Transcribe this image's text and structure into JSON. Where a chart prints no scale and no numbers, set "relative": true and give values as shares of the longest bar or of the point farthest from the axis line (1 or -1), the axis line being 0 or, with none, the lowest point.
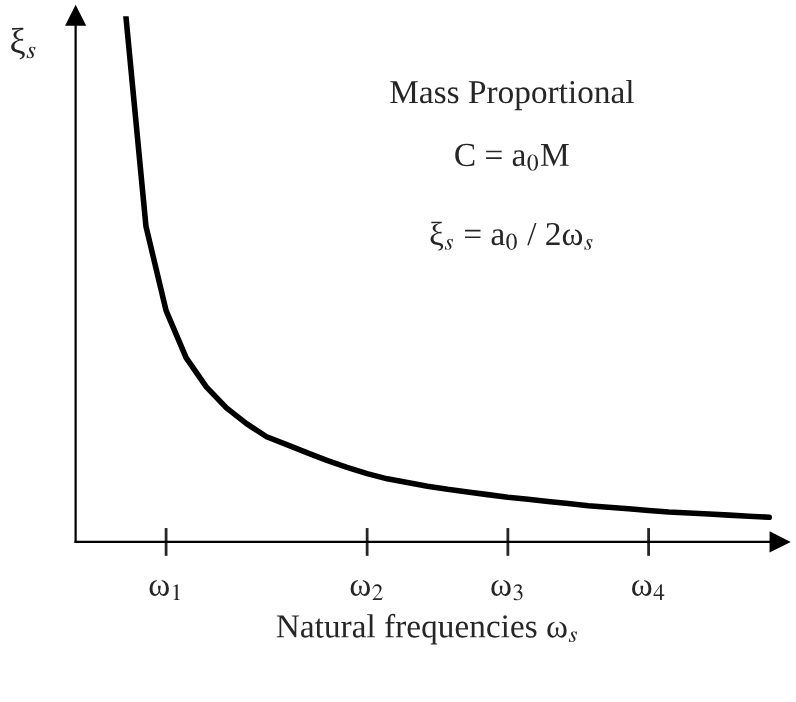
{
  "chart_data": {
    "type": "line",
    "relative": true,
    "xlabel": "Natural frequencies ω$_{s}$",
    "ylabel": "ξ$_{s}$",
    "categories": [
      null,
      null,
      null,
      null,
      "ω$_{1}$",
      null,
      null,
      null,
      null,
      null,
      null,
      null,
      null,
      null,
      "ω$_{2}$",
      null,
      null,
      null,
      null,
      null,
      null,
      "ω$_{3}$",
      null,
      null,
      null,
      null,
      null,
      null,
      "ω$_{4}$",
      null,
      null,
      null,
      null,
      null,
      null
    ],
    "values": [
      null,
      null,
      1.0,
      0.6,
      0.44,
      0.35,
      0.295,
      0.255,
      0.225,
      0.2,
      0.185,
      0.17,
      0.155,
      0.142,
      0.13,
      0.12,
      0.113,
      0.106,
      0.1,
      0.095,
      0.09,
      0.085,
      0.081,
      0.077,
      0.073,
      0.069,
      0.066,
      0.063,
      0.06,
      0.057,
      0.055,
      0.053,
      0.051,
      0.049,
      0.047
    ],
    "color": "#000000",
    "tick_labels": "x",
    "grid": false,
    "legend": false,
    "marker": "none",
    "line_style": "solid",
    "annotations": [
      "Mass Proportional",
      "C = a$_{0}$M",
      "ξ$_{s}$ = a$_{0}$ / 2ω$_{s}$"
    ]
  }
}
